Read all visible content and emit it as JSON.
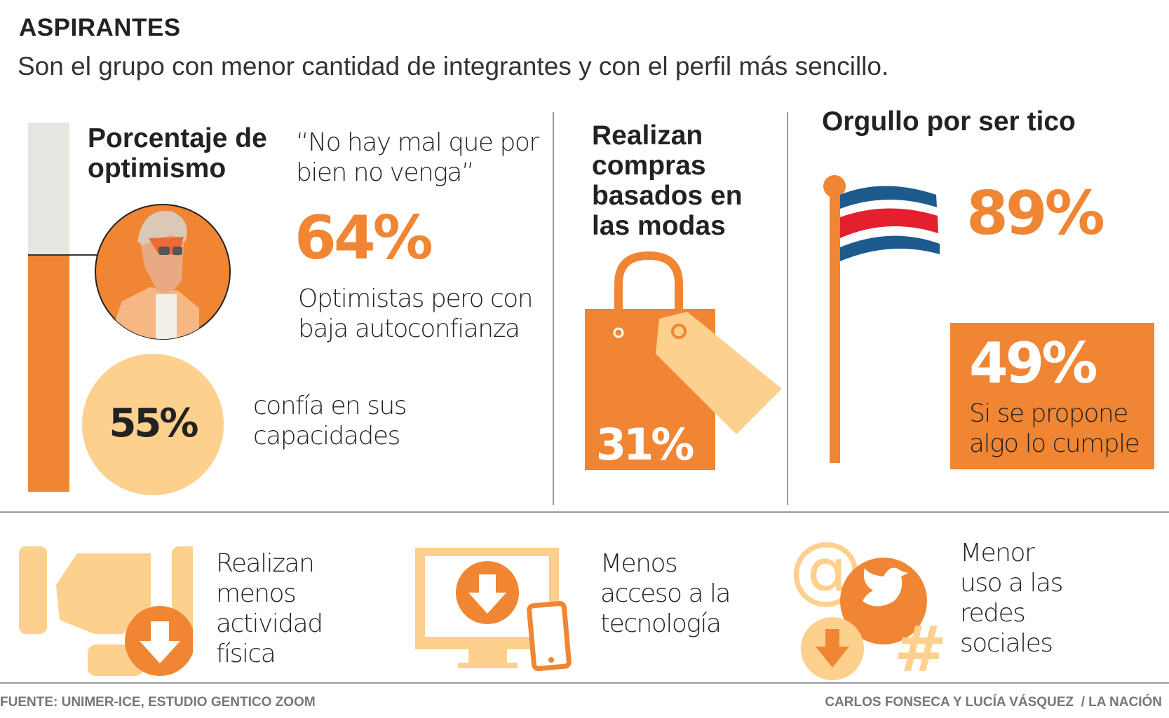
{
  "header": {
    "title": "ASPIRANTES",
    "subtitle": "Son el grupo con menor cantidad de integrantes y con el perfil más sencillo."
  },
  "optimism": {
    "heading": "Porcentaje de optimismo",
    "quote": "“No hay mal que por bien no venga”",
    "value": "64%",
    "value_percent": 64,
    "caption": "Optimistas pero con baja autoconfianza",
    "confidence_value": "55%",
    "confidence_caption": "confía en sus capacidades"
  },
  "fashion": {
    "heading": "Realizan compras basados en las modas",
    "value": "31%"
  },
  "pride": {
    "heading": "Orgullo por ser tico",
    "value": "89%",
    "goal_value": "49%",
    "goal_caption": "Si se propone algo lo cumple"
  },
  "bottom": [
    {
      "text": "Realizan menos actividad física",
      "icon": "fist-down-icon"
    },
    {
      "text": "Menos acceso a la tecnología",
      "icon": "computer-download-icon"
    },
    {
      "text": "Menor uso a las redes sociales",
      "icon": "social-media-down-icon"
    }
  ],
  "footer": {
    "source": "FUENTE: UNIMER-ICE, ESTUDIO GENTICO ZOOM",
    "credit": "CARLOS FONSECA Y LUCÍA VÁSQUEZ  / LA NACIÓN"
  },
  "colors": {
    "orange": "#f08533",
    "light_orange": "#fdd08e",
    "grey": "#e6e6e1"
  }
}
